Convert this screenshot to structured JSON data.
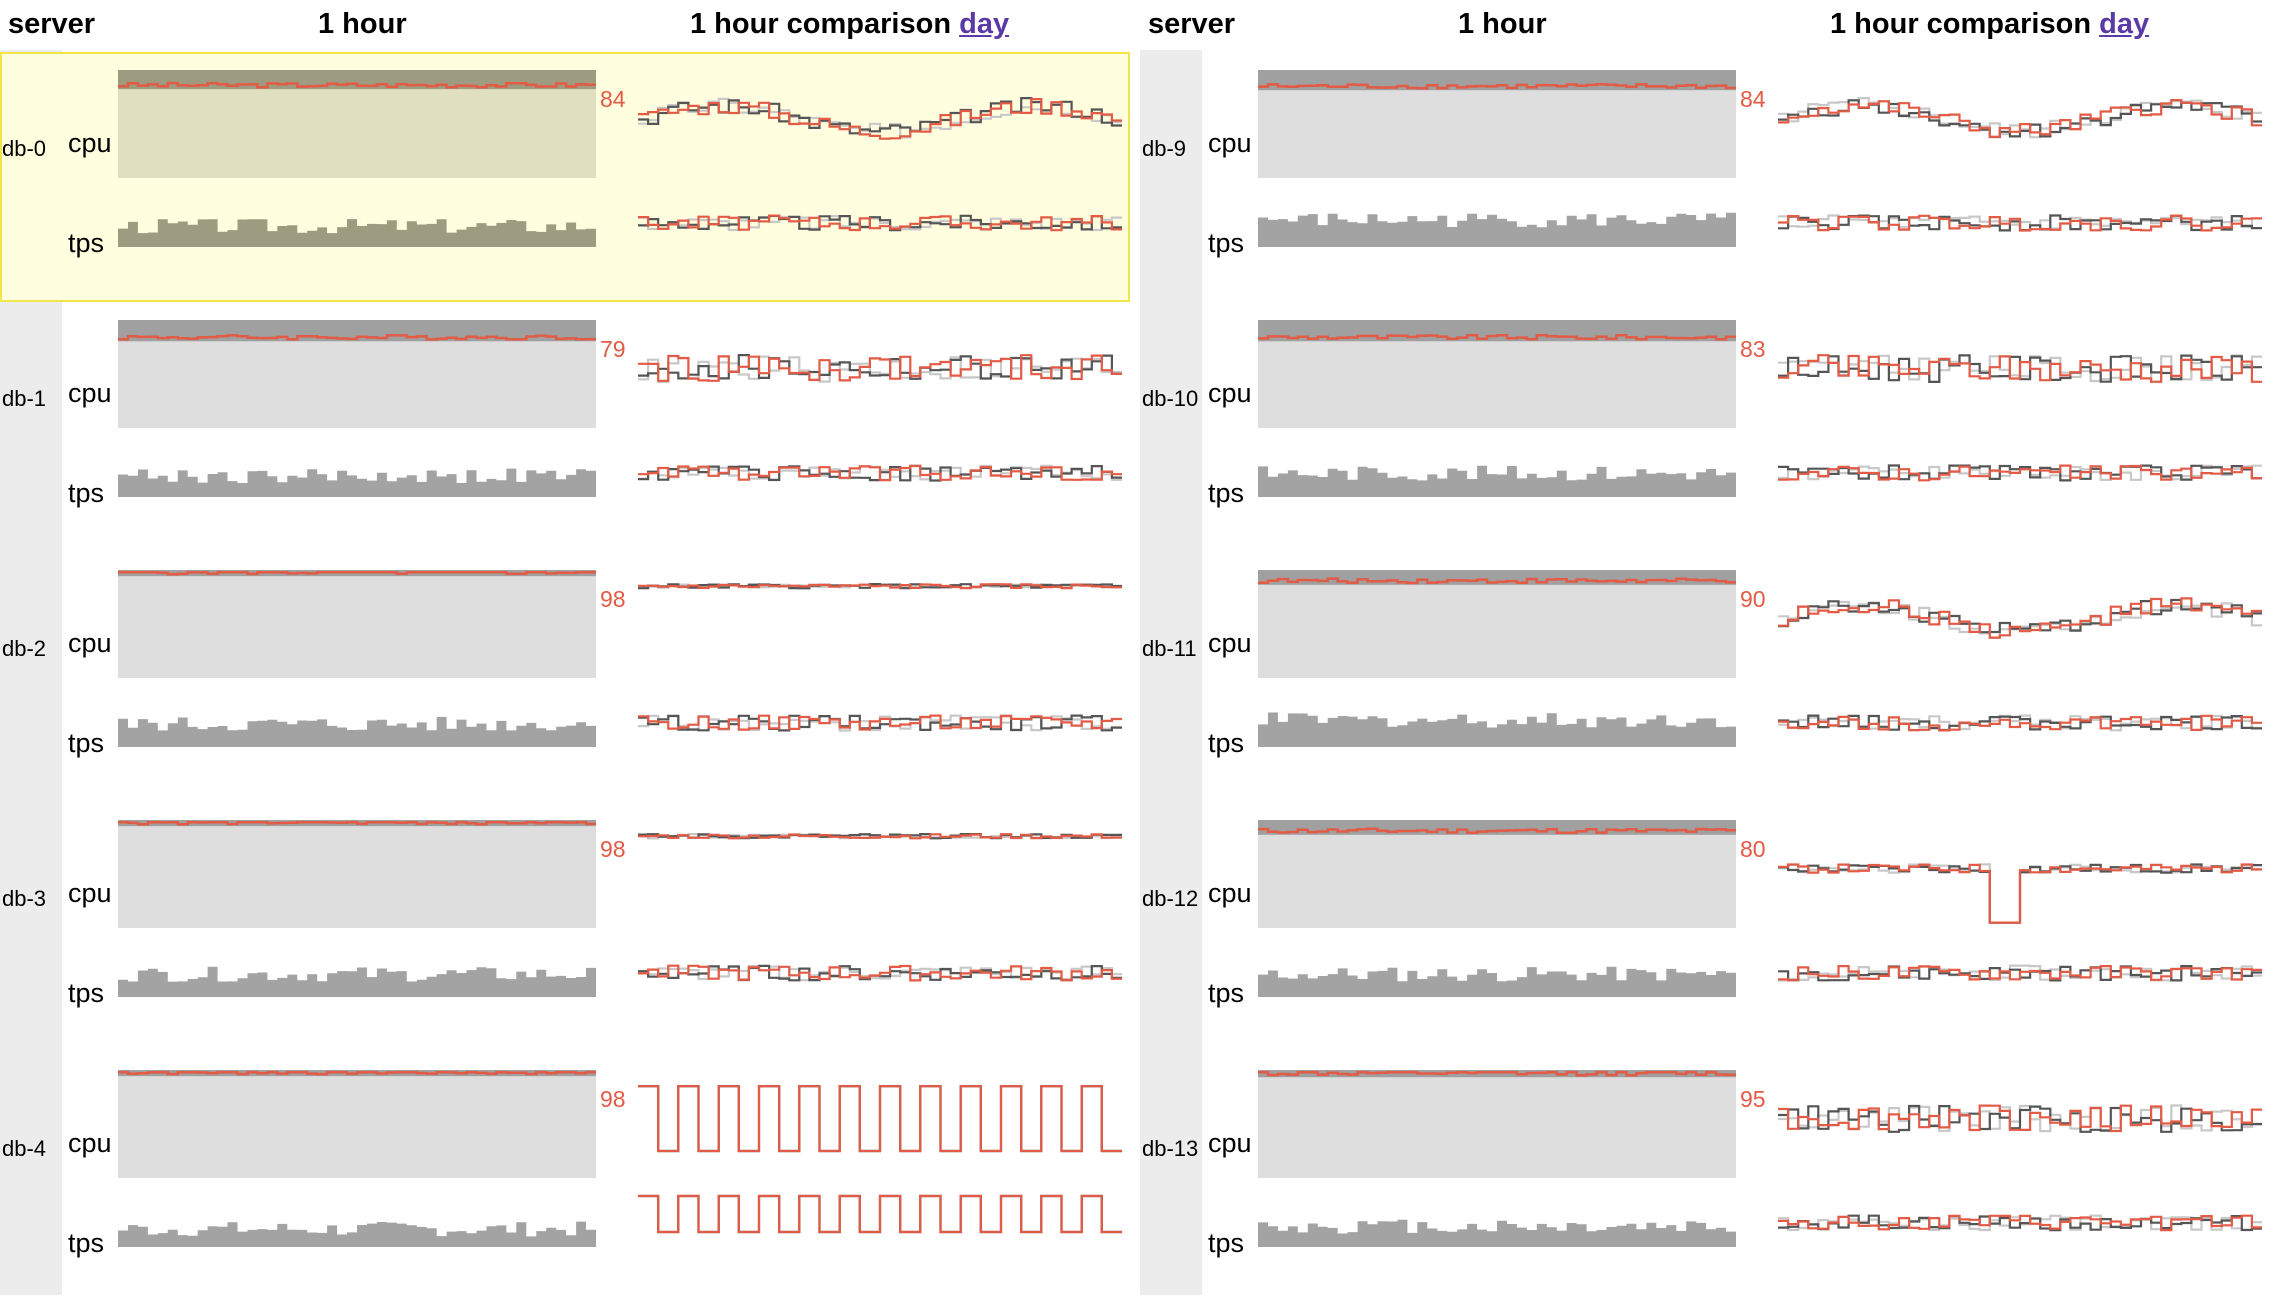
{
  "header": {
    "server": "server",
    "hour": "1 hour",
    "comparison": "1 hour comparison",
    "day_link": "day"
  },
  "labels": {
    "cpu": "cpu",
    "tps": "tps"
  },
  "colors": {
    "current": "#e35a45",
    "yesterday": "#555555",
    "last_week": "#c8c8c8",
    "cpu_fill": "#dedede",
    "tps_fill": "#a3a3a3",
    "highlight_bg": "#ffffe0",
    "highlight_border": "#f0e64a"
  },
  "highlighted": "db-0",
  "servers": [
    {
      "name": "db-0",
      "cpu_max": "84",
      "cpu_level": 0.86,
      "tps_level": 0.35,
      "cmp_pattern": "wavy"
    },
    {
      "name": "db-1",
      "cpu_max": "79",
      "cpu_level": 0.84,
      "tps_level": 0.35,
      "cmp_pattern": "noisy"
    },
    {
      "name": "db-2",
      "cpu_max": "98",
      "cpu_level": 0.98,
      "tps_level": 0.38,
      "cmp_pattern": "flat"
    },
    {
      "name": "db-3",
      "cpu_max": "98",
      "cpu_level": 0.98,
      "tps_level": 0.38,
      "cmp_pattern": "flat"
    },
    {
      "name": "db-4",
      "cpu_max": "98",
      "cpu_level": 0.98,
      "tps_level": 0.3,
      "cmp_pattern": "square"
    },
    {
      "name": "db-9",
      "cpu_max": "84",
      "cpu_level": 0.85,
      "tps_level": 0.45,
      "cmp_pattern": "wavy"
    },
    {
      "name": "db-10",
      "cpu_max": "83",
      "cpu_level": 0.84,
      "tps_level": 0.4,
      "cmp_pattern": "noisy"
    },
    {
      "name": "db-11",
      "cpu_max": "90",
      "cpu_level": 0.9,
      "tps_level": 0.45,
      "cmp_pattern": "wavy"
    },
    {
      "name": "db-12",
      "cpu_max": "80",
      "cpu_level": 0.9,
      "tps_level": 0.38,
      "cmp_pattern": "dip"
    },
    {
      "name": "db-13",
      "cpu_max": "95",
      "cpu_level": 0.97,
      "tps_level": 0.35,
      "cmp_pattern": "noisy"
    }
  ]
}
